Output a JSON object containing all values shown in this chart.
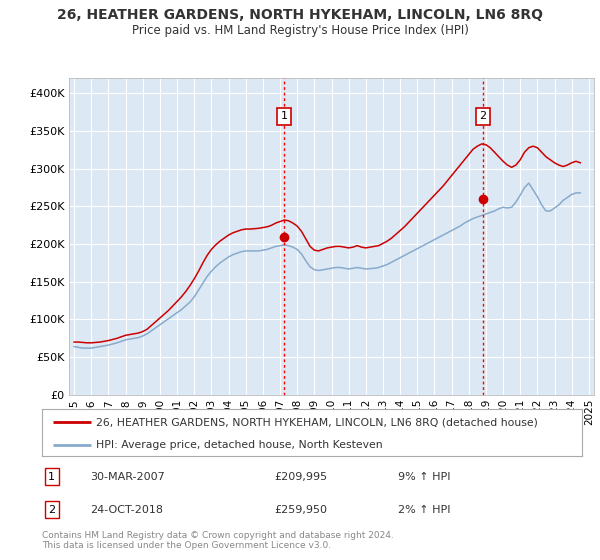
{
  "title": "26, HEATHER GARDENS, NORTH HYKEHAM, LINCOLN, LN6 8RQ",
  "subtitle": "Price paid vs. HM Land Registry's House Price Index (HPI)",
  "background_color": "#dce9f5",
  "grid_color": "#ffffff",
  "ylim": [
    0,
    420000
  ],
  "yticks": [
    0,
    50000,
    100000,
    150000,
    200000,
    250000,
    300000,
    350000,
    400000
  ],
  "ytick_labels": [
    "£0",
    "£50K",
    "£100K",
    "£150K",
    "£200K",
    "£250K",
    "£300K",
    "£350K",
    "£400K"
  ],
  "sale1_x": 2007.24,
  "sale1_y": 209995,
  "sale2_x": 2018.81,
  "sale2_y": 259950,
  "legend_line1": "26, HEATHER GARDENS, NORTH HYKEHAM, LINCOLN, LN6 8RQ (detached house)",
  "legend_line2": "HPI: Average price, detached house, North Kesteven",
  "footer": "Contains HM Land Registry data © Crown copyright and database right 2024.\nThis data is licensed under the Open Government Licence v3.0.",
  "red_color": "#cc0000",
  "blue_color": "#88aacc",
  "xlim_left": 1994.7,
  "xlim_right": 2025.3,
  "hpi_data": {
    "years": [
      1995.0,
      1995.25,
      1995.5,
      1995.75,
      1996.0,
      1996.25,
      1996.5,
      1996.75,
      1997.0,
      1997.25,
      1997.5,
      1997.75,
      1998.0,
      1998.25,
      1998.5,
      1998.75,
      1999.0,
      1999.25,
      1999.5,
      1999.75,
      2000.0,
      2000.25,
      2000.5,
      2000.75,
      2001.0,
      2001.25,
      2001.5,
      2001.75,
      2002.0,
      2002.25,
      2002.5,
      2002.75,
      2003.0,
      2003.25,
      2003.5,
      2003.75,
      2004.0,
      2004.25,
      2004.5,
      2004.75,
      2005.0,
      2005.25,
      2005.5,
      2005.75,
      2006.0,
      2006.25,
      2006.5,
      2006.75,
      2007.0,
      2007.25,
      2007.5,
      2007.75,
      2008.0,
      2008.25,
      2008.5,
      2008.75,
      2009.0,
      2009.25,
      2009.5,
      2009.75,
      2010.0,
      2010.25,
      2010.5,
      2010.75,
      2011.0,
      2011.25,
      2011.5,
      2011.75,
      2012.0,
      2012.25,
      2012.5,
      2012.75,
      2013.0,
      2013.25,
      2013.5,
      2013.75,
      2014.0,
      2014.25,
      2014.5,
      2014.75,
      2015.0,
      2015.25,
      2015.5,
      2015.75,
      2016.0,
      2016.25,
      2016.5,
      2016.75,
      2017.0,
      2017.25,
      2017.5,
      2017.75,
      2018.0,
      2018.25,
      2018.5,
      2018.75,
      2019.0,
      2019.25,
      2019.5,
      2019.75,
      2020.0,
      2020.25,
      2020.5,
      2020.75,
      2021.0,
      2021.25,
      2021.5,
      2021.75,
      2022.0,
      2022.25,
      2022.5,
      2022.75,
      2023.0,
      2023.25,
      2023.5,
      2023.75,
      2024.0,
      2024.25,
      2024.5
    ],
    "hpi_values": [
      64000,
      63000,
      62000,
      62000,
      62000,
      63000,
      64000,
      65000,
      66000,
      67500,
      69000,
      71000,
      73000,
      74000,
      75000,
      76000,
      78000,
      81000,
      85000,
      89000,
      93000,
      97000,
      101000,
      105000,
      109000,
      113000,
      118000,
      123000,
      130000,
      139000,
      148000,
      157000,
      164000,
      170000,
      175000,
      179000,
      183000,
      186000,
      188000,
      190000,
      191000,
      191000,
      191000,
      191000,
      192000,
      193000,
      195000,
      197000,
      198000,
      199000,
      198000,
      196000,
      193000,
      187000,
      178000,
      170000,
      166000,
      165000,
      166000,
      167000,
      168000,
      169000,
      169000,
      168000,
      167000,
      168000,
      169000,
      168000,
      167000,
      167500,
      168000,
      169000,
      171000,
      173000,
      176000,
      179000,
      182000,
      185000,
      188000,
      191000,
      194000,
      197000,
      200000,
      203000,
      206000,
      209000,
      212000,
      215000,
      218000,
      221000,
      224000,
      228000,
      231000,
      234000,
      236000,
      238000,
      240000,
      242000,
      244000,
      247000,
      249000,
      248000,
      249000,
      256000,
      265000,
      275000,
      281000,
      272000,
      263000,
      252000,
      244000,
      244000,
      248000,
      252000,
      258000,
      262000,
      266000,
      268000,
      268000
    ],
    "price_values": [
      70000,
      70000,
      69500,
      69000,
      69000,
      69500,
      70000,
      71000,
      72000,
      73500,
      75000,
      77000,
      79000,
      80000,
      81000,
      82000,
      84000,
      87000,
      92000,
      97000,
      102000,
      107000,
      112000,
      118000,
      124000,
      130000,
      137000,
      145000,
      154000,
      164000,
      175000,
      185000,
      193000,
      199000,
      204000,
      208000,
      212000,
      215000,
      217000,
      219000,
      220000,
      220000,
      220500,
      221000,
      222000,
      223000,
      225000,
      228000,
      230000,
      232000,
      231000,
      228000,
      224000,
      217000,
      207000,
      197000,
      192000,
      191000,
      193000,
      195000,
      196000,
      197000,
      197000,
      196000,
      195000,
      196000,
      198000,
      196000,
      195000,
      196000,
      197000,
      198000,
      201000,
      204000,
      208000,
      213000,
      218000,
      223000,
      229000,
      235000,
      241000,
      247000,
      253000,
      259000,
      265000,
      271000,
      277000,
      284000,
      291000,
      298000,
      305000,
      312000,
      319000,
      326000,
      330000,
      333000,
      332000,
      328000,
      322000,
      316000,
      310000,
      305000,
      302000,
      305000,
      312000,
      322000,
      328000,
      330000,
      328000,
      322000,
      316000,
      312000,
      308000,
      305000,
      303000,
      305000,
      308000,
      310000,
      308000
    ]
  }
}
